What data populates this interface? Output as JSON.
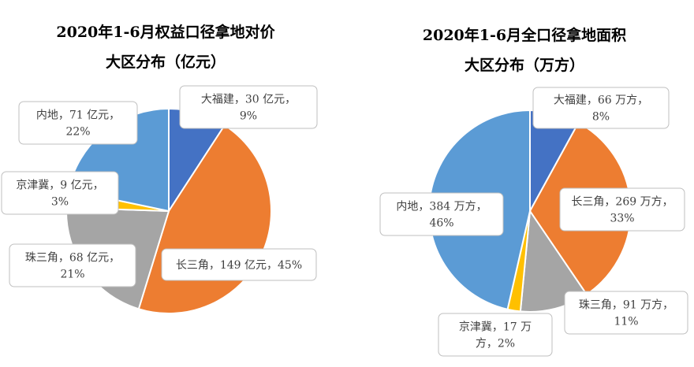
{
  "chart_data": [
    {
      "type": "pie",
      "title_line1": "2020年1-6月权益口径拿地对价",
      "title_line2": "大区分布（亿元）",
      "slices": [
        {
          "name": "大福建",
          "value": 30,
          "unit": "亿元",
          "percent": "9%",
          "color": "#4472C4",
          "label": [
            "大福建，30 亿元，",
            "9%"
          ]
        },
        {
          "name": "长三角",
          "value": 149,
          "unit": "亿元",
          "percent": "45%",
          "color": "#ED7D31",
          "label": [
            "长三角，149 亿元，45%"
          ]
        },
        {
          "name": "珠三角",
          "value": 68,
          "unit": "亿元",
          "percent": "21%",
          "color": "#A5A5A5",
          "label": [
            "珠三角，68 亿元，",
            "21%"
          ]
        },
        {
          "name": "京津冀",
          "value": 9,
          "unit": "亿元",
          "percent": "3%",
          "color": "#FFC000",
          "label": [
            "京津冀，9 亿元，",
            "3%"
          ]
        },
        {
          "name": "内地",
          "value": 71,
          "unit": "亿元",
          "percent": "22%",
          "color": "#5B9BD5",
          "label": [
            "内地，71 亿元，",
            "22%"
          ]
        }
      ]
    },
    {
      "type": "pie",
      "title_line1": "2020年1-6月全口径拿地面积",
      "title_line2": "大区分布（万方）",
      "slices": [
        {
          "name": "大福建",
          "value": 66,
          "unit": "万方",
          "percent": "8%",
          "color": "#4472C4",
          "label": [
            "大福建，66 万方，",
            "8%"
          ]
        },
        {
          "name": "长三角",
          "value": 269,
          "unit": "万方",
          "percent": "33%",
          "color": "#ED7D31",
          "label": [
            "长三角，269 万方，",
            "33%"
          ]
        },
        {
          "name": "珠三角",
          "value": 91,
          "unit": "万方",
          "percent": "11%",
          "color": "#A5A5A5",
          "label": [
            "珠三角，91 万方，",
            "11%"
          ]
        },
        {
          "name": "京津冀",
          "value": 17,
          "unit": "万方",
          "percent": "2%",
          "color": "#FFC000",
          "label": [
            "京津冀，17 万",
            "方，2%"
          ]
        },
        {
          "name": "内地",
          "value": 384,
          "unit": "万方",
          "percent": "46%",
          "color": "#5B9BD5",
          "label": [
            "内地，384 万方，",
            "46%"
          ]
        }
      ]
    }
  ]
}
